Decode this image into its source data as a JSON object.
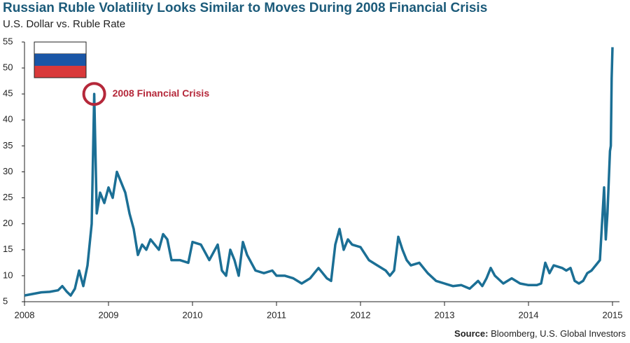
{
  "chart_data": {
    "type": "line",
    "title": "Russian Ruble Volatility Looks Similar to Moves During 2008 Financial Crisis",
    "subtitle": "U.S. Dollar vs. Ruble Rate",
    "annotation": "2008 Financial Crisis",
    "source": {
      "label": "Source:",
      "text": "Bloomberg, U.S. Global Investors"
    },
    "xlim": [
      2008,
      2015
    ],
    "xticks": [
      2008,
      2009,
      2010,
      2011,
      2012,
      2013,
      2014,
      2015
    ],
    "ylim": [
      5,
      55
    ],
    "yticks": [
      5,
      10,
      15,
      20,
      25,
      30,
      35,
      40,
      45,
      50,
      55
    ],
    "grid": false,
    "x": [
      2008.0,
      2008.1,
      2008.2,
      2008.3,
      2008.4,
      2008.45,
      2008.5,
      2008.55,
      2008.6,
      2008.65,
      2008.7,
      2008.75,
      2008.8,
      2008.83,
      2008.86,
      2008.9,
      2008.95,
      2009.0,
      2009.05,
      2009.1,
      2009.15,
      2009.2,
      2009.25,
      2009.3,
      2009.35,
      2009.4,
      2009.45,
      2009.5,
      2009.6,
      2009.65,
      2009.7,
      2009.75,
      2009.85,
      2009.95,
      2010.0,
      2010.1,
      2010.2,
      2010.3,
      2010.35,
      2010.4,
      2010.45,
      2010.5,
      2010.55,
      2010.6,
      2010.65,
      2010.75,
      2010.85,
      2010.95,
      2011.0,
      2011.1,
      2011.2,
      2011.3,
      2011.4,
      2011.5,
      2011.55,
      2011.6,
      2011.65,
      2011.7,
      2011.75,
      2011.8,
      2011.85,
      2011.9,
      2012.0,
      2012.1,
      2012.2,
      2012.3,
      2012.35,
      2012.4,
      2012.45,
      2012.5,
      2012.55,
      2012.6,
      2012.7,
      2012.8,
      2012.9,
      2013.0,
      2013.1,
      2013.2,
      2013.3,
      2013.4,
      2013.45,
      2013.5,
      2013.55,
      2013.6,
      2013.7,
      2013.8,
      2013.9,
      2014.0,
      2014.1,
      2014.15,
      2014.2,
      2014.25,
      2014.3,
      2014.4,
      2014.45,
      2014.5,
      2014.55,
      2014.6,
      2014.65,
      2014.7,
      2014.75,
      2014.8,
      2014.85,
      2014.9,
      2014.92,
      2014.94,
      2014.96,
      2014.97,
      2014.98,
      2014.99,
      2015.0
    ],
    "series": [
      {
        "name": "U.S. Dollar vs. Ruble Rate",
        "color": "#1b6f95",
        "values": [
          6.2,
          6.5,
          6.8,
          6.9,
          7.2,
          8,
          7.0,
          6.2,
          7.5,
          11,
          8,
          12,
          20,
          45,
          22,
          26,
          24,
          27,
          25,
          30,
          28,
          26,
          22,
          19,
          14,
          16,
          15,
          17,
          15,
          18,
          17,
          13,
          13,
          12.5,
          16.5,
          16,
          13,
          16,
          11,
          10,
          15,
          13,
          10,
          16.5,
          14,
          11,
          10.5,
          11,
          10,
          10,
          9.5,
          8.5,
          9.5,
          11.5,
          10.5,
          9.5,
          9,
          16,
          19,
          15,
          17,
          16,
          15.5,
          13,
          12,
          11,
          10,
          11,
          17.5,
          15,
          13,
          12,
          12.5,
          10.5,
          9,
          8.5,
          8,
          8.2,
          7.5,
          9,
          8,
          9.5,
          11.5,
          10,
          8.5,
          9.5,
          8.5,
          8.2,
          8.2,
          8.5,
          12.5,
          10.5,
          12,
          11.5,
          11,
          11.5,
          9,
          8.5,
          9,
          10.5,
          11,
          12,
          13,
          27,
          17,
          22,
          30,
          34,
          35,
          48,
          54
        ]
      }
    ]
  }
}
